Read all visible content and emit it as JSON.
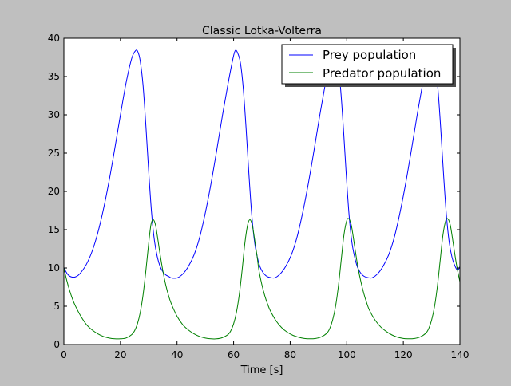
{
  "chart_data": {
    "type": "line",
    "title": "Classic Lotka-Volterra",
    "xlabel": "Time [s]",
    "ylabel": "",
    "xlim": [
      0,
      140
    ],
    "ylim": [
      0,
      40
    ],
    "xticks": [
      0,
      20,
      40,
      60,
      80,
      100,
      120,
      140
    ],
    "yticks": [
      0,
      5,
      10,
      15,
      20,
      25,
      30,
      35,
      40
    ],
    "grid": false,
    "legend": {
      "position": "top-right",
      "entries": [
        "Prey population",
        "Predator population"
      ]
    },
    "series": [
      {
        "name": "Prey population",
        "color": "#0000ff",
        "x": [
          0,
          1.5,
          3,
          4.5,
          6,
          8,
          10,
          12,
          14,
          16,
          18,
          20,
          22,
          24,
          25.4,
          26.2,
          27,
          28,
          29,
          30,
          31,
          32,
          33,
          34,
          35,
          36,
          37,
          38,
          40,
          42,
          44,
          46,
          48,
          50,
          52,
          54,
          56,
          58,
          59.8,
          60.6,
          61.4,
          62.4,
          63.4,
          64.4,
          65.4,
          66.4,
          67.4,
          68.4,
          69.4,
          70.4,
          71.4,
          72.4,
          74.4,
          76.4,
          78.4,
          80.4,
          82.4,
          84.4,
          86.4,
          88.4,
          90.4,
          92.4,
          94.2,
          95,
          95.8,
          96.8,
          97.8,
          98.8,
          99.8,
          100.8,
          101.8,
          102.8,
          103.8,
          104.8,
          105.8,
          106.8,
          108.8,
          110.8,
          112.8,
          114.8,
          116.8,
          118.8,
          120.8,
          122.8,
          124.8,
          126.8,
          128.6,
          129.4,
          130.2,
          131.2,
          132.2,
          133.2,
          134.2,
          135.2,
          136.2,
          137.2,
          138.2,
          139.2,
          140
        ],
        "values": [
          10,
          9.1,
          8.8,
          8.9,
          9.4,
          10.5,
          12.2,
          14.6,
          17.7,
          21.4,
          25.6,
          30,
          34.2,
          37.4,
          38.4,
          38.2,
          37,
          33.8,
          28.5,
          22.5,
          17.2,
          13.6,
          11.5,
          10.2,
          9.5,
          9.1,
          8.9,
          8.7,
          8.7,
          9.2,
          10.2,
          11.7,
          14,
          17.2,
          21,
          25.3,
          29.8,
          34,
          37.4,
          38.4,
          38.1,
          36.8,
          33.5,
          28.3,
          22.3,
          17,
          13.4,
          11.4,
          10.1,
          9.4,
          9,
          8.8,
          8.7,
          9.2,
          10.2,
          11.7,
          14,
          17.2,
          21,
          25.3,
          29.8,
          34,
          37.4,
          38.4,
          38.1,
          36.8,
          33.5,
          28.3,
          22.3,
          17,
          13.4,
          11.4,
          10.1,
          9.4,
          9,
          8.8,
          8.7,
          9.2,
          10.2,
          11.7,
          14,
          17.2,
          21,
          25.3,
          29.8,
          34,
          37.4,
          38.4,
          38.1,
          36.8,
          33.5,
          28.3,
          22.3,
          17,
          13.4,
          11.4,
          10.3,
          9.7,
          10.2
        ]
      },
      {
        "name": "Predator population",
        "color": "#008000",
        "x": [
          0,
          1,
          2,
          3,
          4,
          6,
          8,
          10,
          12,
          14,
          16,
          18,
          20,
          22,
          24,
          25,
          26,
          27,
          28,
          29,
          30,
          30.8,
          31.6,
          32.4,
          33.2,
          34,
          35,
          36,
          37,
          38,
          40,
          42,
          44,
          46,
          48,
          50,
          52,
          54,
          56,
          58,
          59,
          60,
          61,
          62,
          63,
          64,
          65,
          65.8,
          66.6,
          67.4,
          68.2,
          69,
          70,
          71,
          72,
          73,
          75,
          77,
          79,
          81,
          83,
          85,
          87,
          89,
          91,
          93,
          94,
          95,
          96,
          97,
          98,
          99,
          100,
          100.8,
          101.6,
          102.4,
          103.2,
          104,
          105,
          106,
          107,
          108,
          110,
          112,
          114,
          116,
          118,
          120,
          122,
          124,
          126,
          128,
          129,
          130,
          131,
          132,
          133,
          134,
          135,
          135.8,
          136.6,
          137.4,
          138.2,
          139,
          140
        ],
        "values": [
          10,
          8.4,
          7.1,
          6,
          5.1,
          3.7,
          2.6,
          1.9,
          1.4,
          1.05,
          0.85,
          0.75,
          0.75,
          0.85,
          1.3,
          1.8,
          2.7,
          4.2,
          6.5,
          9.7,
          13.3,
          15.7,
          16.3,
          15.6,
          13.8,
          11.8,
          9.6,
          7.8,
          6.4,
          5.3,
          3.7,
          2.6,
          1.9,
          1.4,
          1.05,
          0.85,
          0.75,
          0.75,
          0.9,
          1.3,
          1.8,
          2.7,
          4.2,
          6.5,
          9.7,
          13.3,
          15.7,
          16.3,
          15.6,
          13.8,
          11.8,
          9.6,
          7.8,
          6.4,
          5.3,
          4.4,
          3.1,
          2.2,
          1.6,
          1.2,
          0.95,
          0.8,
          0.75,
          0.8,
          1,
          1.5,
          2.1,
          3.2,
          4.9,
          7.5,
          10.9,
          14.3,
          16.2,
          16.4,
          15.6,
          13.8,
          11.8,
          10,
          8.2,
          6.7,
          5.5,
          4.5,
          3.2,
          2.3,
          1.7,
          1.25,
          0.95,
          0.8,
          0.75,
          0.8,
          1,
          1.5,
          2.1,
          3.2,
          4.9,
          7.5,
          10.9,
          14.3,
          16.2,
          16.4,
          15.6,
          13.8,
          11.8,
          10,
          8.2
        ]
      }
    ]
  }
}
